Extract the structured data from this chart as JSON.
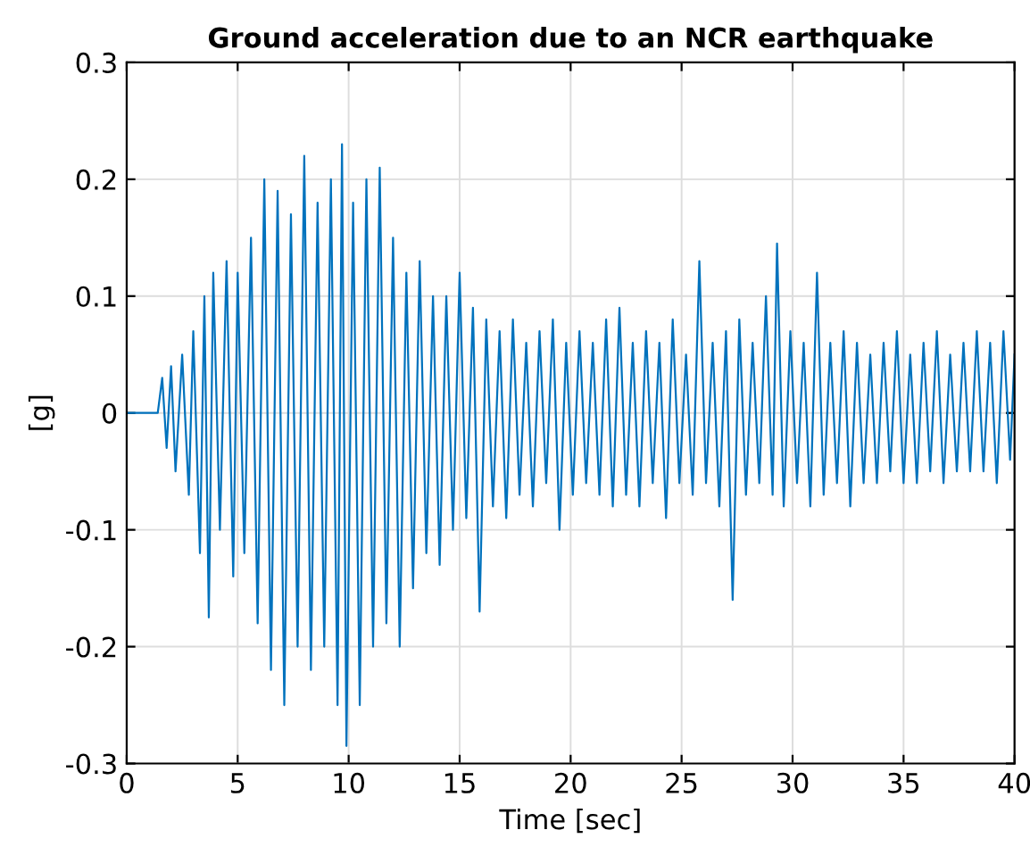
{
  "chart_data": {
    "type": "line",
    "title": "Ground acceleration due to an NCR earthquake",
    "xlabel": "Time [sec]",
    "ylabel": "[g]",
    "xlim": [
      0,
      40
    ],
    "ylim": [
      -0.3,
      0.3
    ],
    "xticks": [
      0,
      5,
      10,
      15,
      20,
      25,
      30,
      35,
      40
    ],
    "yticks": [
      -0.3,
      -0.2,
      -0.1,
      0,
      0.1,
      0.2,
      0.3
    ],
    "grid": true,
    "series": [
      {
        "color": "#0072bd",
        "x": [
          0,
          1.4,
          1.6,
          1.8,
          2.0,
          2.2,
          2.5,
          2.8,
          3.0,
          3.3,
          3.5,
          3.7,
          3.9,
          4.2,
          4.5,
          4.8,
          5.0,
          5.3,
          5.6,
          5.9,
          6.2,
          6.5,
          6.8,
          7.1,
          7.4,
          7.7,
          8.0,
          8.3,
          8.6,
          8.9,
          9.2,
          9.5,
          9.7,
          9.9,
          10.2,
          10.5,
          10.8,
          11.1,
          11.4,
          11.7,
          12.0,
          12.3,
          12.6,
          12.9,
          13.2,
          13.5,
          13.8,
          14.1,
          14.4,
          14.7,
          15.0,
          15.3,
          15.6,
          15.9,
          16.2,
          16.5,
          16.8,
          17.1,
          17.4,
          17.7,
          18.0,
          18.3,
          18.6,
          18.9,
          19.2,
          19.5,
          19.8,
          20.1,
          20.4,
          20.7,
          21.0,
          21.3,
          21.6,
          21.9,
          22.2,
          22.5,
          22.8,
          23.1,
          23.4,
          23.7,
          24.0,
          24.3,
          24.6,
          24.9,
          25.2,
          25.5,
          25.8,
          26.1,
          26.4,
          26.7,
          27.0,
          27.3,
          27.6,
          27.9,
          28.2,
          28.5,
          28.8,
          29.1,
          29.3,
          29.6,
          29.9,
          30.2,
          30.5,
          30.8,
          31.1,
          31.4,
          31.7,
          32.0,
          32.3,
          32.6,
          32.9,
          33.2,
          33.5,
          33.8,
          34.1,
          34.4,
          34.7,
          35.0,
          35.3,
          35.6,
          35.9,
          36.2,
          36.5,
          36.8,
          37.1,
          37.4,
          37.7,
          38.0,
          38.3,
          38.6,
          38.9,
          39.2,
          39.5,
          39.8,
          40
        ],
        "values": [
          0,
          0,
          0.03,
          -0.03,
          0.04,
          -0.05,
          0.05,
          -0.07,
          0.07,
          -0.12,
          0.1,
          -0.175,
          0.12,
          -0.1,
          0.13,
          -0.14,
          0.12,
          -0.12,
          0.15,
          -0.18,
          0.2,
          -0.22,
          0.19,
          -0.25,
          0.17,
          -0.2,
          0.22,
          -0.22,
          0.18,
          -0.2,
          0.2,
          -0.25,
          0.23,
          -0.285,
          0.18,
          -0.25,
          0.2,
          -0.2,
          0.21,
          -0.18,
          0.15,
          -0.2,
          0.12,
          -0.15,
          0.13,
          -0.12,
          0.1,
          -0.13,
          0.1,
          -0.1,
          0.12,
          -0.09,
          0.09,
          -0.17,
          0.08,
          -0.08,
          0.07,
          -0.09,
          0.08,
          -0.07,
          0.06,
          -0.08,
          0.07,
          -0.06,
          0.08,
          -0.1,
          0.06,
          -0.07,
          0.07,
          -0.06,
          0.06,
          -0.07,
          0.08,
          -0.08,
          0.09,
          -0.07,
          0.06,
          -0.08,
          0.07,
          -0.06,
          0.06,
          -0.09,
          0.08,
          -0.06,
          0.05,
          -0.07,
          0.13,
          -0.06,
          0.06,
          -0.08,
          0.07,
          -0.16,
          0.08,
          -0.07,
          0.06,
          -0.06,
          0.1,
          -0.07,
          0.145,
          -0.08,
          0.07,
          -0.06,
          0.06,
          -0.08,
          0.12,
          -0.07,
          0.06,
          -0.06,
          0.07,
          -0.08,
          0.06,
          -0.06,
          0.05,
          -0.06,
          0.06,
          -0.05,
          0.07,
          -0.06,
          0.05,
          -0.06,
          0.06,
          -0.05,
          0.07,
          -0.06,
          0.05,
          -0.05,
          0.06,
          -0.05,
          0.07,
          -0.05,
          0.06,
          -0.06,
          0.07,
          -0.04,
          0.05
        ]
      }
    ]
  }
}
